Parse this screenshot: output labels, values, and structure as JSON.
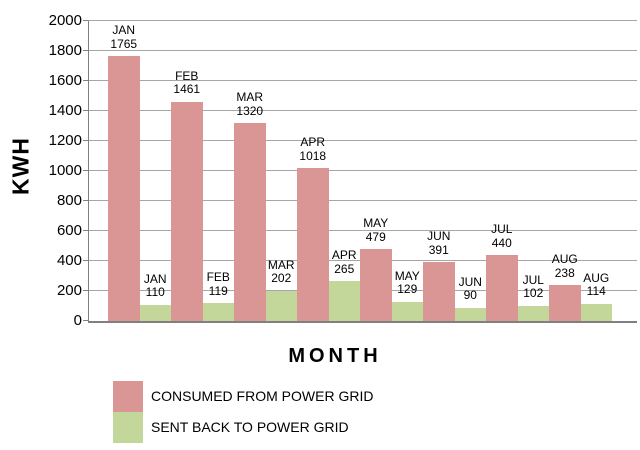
{
  "chart_data": {
    "type": "bar",
    "title": "",
    "xlabel": "MONTH",
    "ylabel": "KWH",
    "ylim": [
      0,
      2000
    ],
    "ytick_step": 200,
    "yticks": [
      0,
      200,
      400,
      600,
      800,
      1000,
      1200,
      1400,
      1600,
      1800,
      2000
    ],
    "grid": true,
    "data_labels": true,
    "legend_position": "bottom-left",
    "categories": [
      "JAN",
      "FEB",
      "MAR",
      "APR",
      "MAY",
      "JUN",
      "JUL",
      "AUG"
    ],
    "series": [
      {
        "name": "CONSUMED FROM POWER GRID",
        "color": "#D99694",
        "values": [
          1765,
          1461,
          1320,
          1018,
          479,
          391,
          440,
          238
        ]
      },
      {
        "name": "SENT BACK TO POWER GRID",
        "color": "#C4D79B",
        "values": [
          110,
          119,
          202,
          265,
          129,
          90,
          102,
          114
        ]
      }
    ],
    "colors": {
      "gridline": "#a6a6a6",
      "axis": "#808080",
      "text": "#000000",
      "background": "#ffffff"
    }
  }
}
